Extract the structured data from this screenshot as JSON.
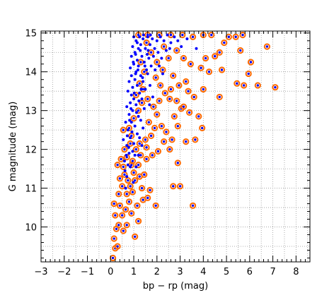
{
  "chart_data": {
    "type": "scatter",
    "title": "",
    "xlabel": "bp − rp (mag)",
    "ylabel": "G magnitude (mag)",
    "xlim": [
      -3,
      8.6
    ],
    "ylim": [
      9.1,
      15.05
    ],
    "x_ticks": [
      -3,
      -2,
      -1,
      0,
      1,
      2,
      3,
      4,
      5,
      6,
      7,
      8
    ],
    "x_tick_labels": [
      "−3",
      "−2",
      "−1",
      "0",
      "1",
      "2",
      "3",
      "4",
      "5",
      "6",
      "7",
      "8"
    ],
    "y_ticks": [
      10,
      11,
      12,
      13,
      14,
      15
    ],
    "y_tick_labels": [
      "10",
      "11",
      "12",
      "13",
      "14",
      "15"
    ],
    "grid": true,
    "grid_style": "dotted",
    "legend": "none",
    "series": [
      {
        "marker": "ringed-dot",
        "color": "#0000ff",
        "ring_color": "#ff6a00",
        "points": [
          [
            0.1,
            9.2
          ],
          [
            0.2,
            9.45
          ],
          [
            0.15,
            9.7
          ],
          [
            0.3,
            9.5
          ],
          [
            0.25,
            9.95
          ],
          [
            0.35,
            10.05
          ],
          [
            0.2,
            10.3
          ],
          [
            0.55,
            9.9
          ],
          [
            0.7,
            10.05
          ],
          [
            1.05,
            9.75
          ],
          [
            0.15,
            10.6
          ],
          [
            0.4,
            10.55
          ],
          [
            0.65,
            10.45
          ],
          [
            0.9,
            10.35
          ],
          [
            0.8,
            10.65
          ],
          [
            1.15,
            10.55
          ],
          [
            0.95,
            10.9
          ],
          [
            0.35,
            10.85
          ],
          [
            0.5,
            11.05
          ],
          [
            0.75,
            11.2
          ],
          [
            0.6,
            11.35
          ],
          [
            0.85,
            11.05
          ],
          [
            1.35,
            11.0
          ],
          [
            1.7,
            10.95
          ],
          [
            1.45,
            11.35
          ],
          [
            1.2,
            11.6
          ],
          [
            0.55,
            11.55
          ],
          [
            0.45,
            11.75
          ],
          [
            0.7,
            11.8
          ],
          [
            0.9,
            11.6
          ],
          [
            1.0,
            11.4
          ],
          [
            1.3,
            11.85
          ],
          [
            1.55,
            11.75
          ],
          [
            1.8,
            11.85
          ],
          [
            2.05,
            11.95
          ],
          [
            1.1,
            12.0
          ],
          [
            0.85,
            12.15
          ],
          [
            1.25,
            12.15
          ],
          [
            1.5,
            12.25
          ],
          [
            1.75,
            12.35
          ],
          [
            0.6,
            12.0
          ],
          [
            0.9,
            12.35
          ],
          [
            2.55,
            12.0
          ],
          [
            2.4,
            12.45
          ],
          [
            2.2,
            12.6
          ],
          [
            2.9,
            12.6
          ],
          [
            2.75,
            12.85
          ],
          [
            2.0,
            12.9
          ],
          [
            1.85,
            13.1
          ],
          [
            2.1,
            13.25
          ],
          [
            1.6,
            13.3
          ],
          [
            1.4,
            13.55
          ],
          [
            2.35,
            13.45
          ],
          [
            2.55,
            13.3
          ],
          [
            3.05,
            13.05
          ],
          [
            3.4,
            12.95
          ],
          [
            3.8,
            12.85
          ],
          [
            3.35,
            13.5
          ],
          [
            3.6,
            13.35
          ],
          [
            3.25,
            13.75
          ],
          [
            2.95,
            13.65
          ],
          [
            2.7,
            13.9
          ],
          [
            2.25,
            14.05
          ],
          [
            2.5,
            14.35
          ],
          [
            2.0,
            14.25
          ],
          [
            1.75,
            14.5
          ],
          [
            1.55,
            14.75
          ],
          [
            2.3,
            14.65
          ],
          [
            2.85,
            14.55
          ],
          [
            3.15,
            14.35
          ],
          [
            3.45,
            14.2
          ],
          [
            3.9,
            14.1
          ],
          [
            4.25,
            14.0
          ],
          [
            4.7,
            13.35
          ],
          [
            4.1,
            14.35
          ],
          [
            4.5,
            14.4
          ],
          [
            4.7,
            14.5
          ],
          [
            4.9,
            14.75
          ],
          [
            5.1,
            14.9
          ],
          [
            5.4,
            14.9
          ],
          [
            5.7,
            14.95
          ],
          [
            5.6,
            14.55
          ],
          [
            6.05,
            14.25
          ],
          [
            5.95,
            13.95
          ],
          [
            5.45,
            13.7
          ],
          [
            5.75,
            13.65
          ],
          [
            6.35,
            13.65
          ],
          [
            6.75,
            14.65
          ],
          [
            7.1,
            13.6
          ],
          [
            1.2,
            14.95
          ],
          [
            1.6,
            14.95
          ],
          [
            2.1,
            14.95
          ],
          [
            2.6,
            14.95
          ],
          [
            3.1,
            14.95
          ],
          [
            3.55,
            14.9
          ],
          [
            4.0,
            14.95
          ],
          [
            4.35,
            14.95
          ],
          [
            3.55,
            10.55
          ],
          [
            2.7,
            11.05
          ],
          [
            2.9,
            11.65
          ],
          [
            3.0,
            11.05
          ],
          [
            1.95,
            10.55
          ],
          [
            1.6,
            10.75
          ],
          [
            1.2,
            10.15
          ],
          [
            0.4,
            11.25
          ],
          [
            0.3,
            11.6
          ],
          [
            0.55,
            12.5
          ],
          [
            0.8,
            12.55
          ],
          [
            1.0,
            12.8
          ],
          [
            1.2,
            13.0
          ],
          [
            1.35,
            13.2
          ],
          [
            1.1,
            13.4
          ],
          [
            1.25,
            13.7
          ],
          [
            1.45,
            14.0
          ],
          [
            1.3,
            14.25
          ],
          [
            1.65,
            12.7
          ],
          [
            1.9,
            12.55
          ],
          [
            2.3,
            12.2
          ],
          [
            1.55,
            12.05
          ],
          [
            2.65,
            12.25
          ],
          [
            3.25,
            12.2
          ],
          [
            0.95,
            11.7
          ],
          [
            1.05,
            11.2
          ],
          [
            1.25,
            11.3
          ],
          [
            0.7,
            10.85
          ],
          [
            0.5,
            10.3
          ],
          [
            1.4,
            10.7
          ],
          [
            2.15,
            13.65
          ],
          [
            1.95,
            13.85
          ],
          [
            2.6,
            13.55
          ],
          [
            2.85,
            13.25
          ],
          [
            3.15,
            13.1
          ],
          [
            4.0,
            13.55
          ],
          [
            3.95,
            12.55
          ],
          [
            3.65,
            12.25
          ],
          [
            4.8,
            14.05
          ]
        ]
      },
      {
        "marker": "dot",
        "color": "#0000ff",
        "points": [
          [
            0.7,
            11.3
          ],
          [
            0.75,
            11.6
          ],
          [
            0.8,
            11.9
          ],
          [
            0.7,
            12.1
          ],
          [
            0.85,
            12.3
          ],
          [
            0.75,
            12.5
          ],
          [
            0.9,
            12.7
          ],
          [
            0.8,
            12.9
          ],
          [
            0.95,
            13.0
          ],
          [
            0.85,
            13.2
          ],
          [
            0.9,
            13.4
          ],
          [
            1.0,
            13.3
          ],
          [
            0.95,
            13.6
          ],
          [
            1.05,
            13.8
          ],
          [
            0.9,
            13.9
          ],
          [
            1.1,
            14.0
          ],
          [
            1.0,
            14.2
          ],
          [
            1.15,
            14.3
          ],
          [
            1.05,
            14.5
          ],
          [
            1.2,
            14.6
          ],
          [
            1.1,
            14.8
          ],
          [
            1.25,
            14.9
          ],
          [
            1.3,
            14.7
          ],
          [
            1.4,
            14.85
          ],
          [
            1.5,
            14.6
          ],
          [
            1.35,
            14.4
          ],
          [
            1.2,
            14.15
          ],
          [
            1.3,
            13.9
          ],
          [
            1.15,
            13.65
          ],
          [
            1.25,
            13.45
          ],
          [
            1.1,
            13.15
          ],
          [
            1.2,
            12.85
          ],
          [
            1.05,
            12.6
          ],
          [
            1.15,
            12.4
          ],
          [
            1.0,
            12.15
          ],
          [
            0.95,
            11.95
          ],
          [
            1.05,
            11.85
          ],
          [
            0.85,
            11.55
          ],
          [
            0.65,
            11.0
          ],
          [
            0.6,
            11.7
          ],
          [
            0.55,
            12.25
          ],
          [
            0.65,
            12.7
          ],
          [
            0.7,
            13.1
          ],
          [
            0.75,
            13.5
          ],
          [
            0.8,
            13.75
          ],
          [
            0.85,
            14.1
          ],
          [
            0.9,
            14.4
          ],
          [
            0.95,
            14.65
          ],
          [
            1.0,
            14.9
          ],
          [
            1.6,
            14.9
          ],
          [
            1.7,
            14.7
          ],
          [
            1.8,
            14.85
          ],
          [
            1.9,
            14.6
          ],
          [
            2.0,
            14.8
          ],
          [
            2.15,
            14.9
          ],
          [
            2.3,
            14.8
          ],
          [
            2.45,
            14.95
          ],
          [
            2.6,
            14.75
          ],
          [
            2.75,
            14.9
          ],
          [
            1.45,
            14.25
          ],
          [
            1.55,
            14.05
          ],
          [
            1.65,
            14.35
          ],
          [
            1.75,
            14.15
          ],
          [
            1.85,
            14.4
          ],
          [
            2.05,
            14.5
          ],
          [
            2.2,
            14.35
          ],
          [
            1.4,
            13.75
          ],
          [
            1.5,
            13.55
          ],
          [
            1.6,
            13.95
          ],
          [
            1.7,
            13.65
          ],
          [
            1.35,
            13.3
          ],
          [
            1.45,
            13.05
          ],
          [
            1.3,
            12.75
          ],
          [
            1.4,
            12.55
          ],
          [
            1.25,
            12.3
          ],
          [
            1.35,
            12.1
          ],
          [
            1.2,
            11.85
          ],
          [
            1.1,
            11.55
          ],
          [
            0.98,
            11.15
          ],
          [
            1.15,
            14.75
          ],
          [
            1.28,
            14.55
          ],
          [
            1.42,
            14.95
          ],
          [
            1.58,
            14.45
          ],
          [
            1.08,
            13.95
          ],
          [
            1.02,
            13.45
          ],
          [
            0.88,
            13.05
          ],
          [
            0.82,
            12.75
          ],
          [
            0.72,
            12.35
          ],
          [
            0.78,
            12.05
          ],
          [
            0.68,
            11.85
          ],
          [
            0.62,
            11.45
          ],
          [
            0.92,
            12.45
          ],
          [
            1.12,
            12.95
          ],
          [
            1.22,
            13.25
          ],
          [
            1.32,
            13.55
          ],
          [
            1.38,
            13.85
          ],
          [
            1.48,
            14.15
          ],
          [
            1.62,
            14.55
          ],
          [
            1.72,
            14.95
          ],
          [
            2.4,
            14.55
          ],
          [
            2.55,
            14.6
          ],
          [
            2.9,
            14.8
          ],
          [
            3.05,
            14.65
          ],
          [
            3.3,
            14.85
          ],
          [
            3.7,
            14.6
          ],
          [
            1.82,
            13.35
          ],
          [
            1.68,
            13.15
          ],
          [
            1.92,
            14.05
          ],
          [
            2.1,
            14.15
          ],
          [
            2.25,
            13.95
          ],
          [
            0.98,
            14.25
          ],
          [
            1.08,
            14.45
          ],
          [
            1.18,
            14.05
          ]
        ]
      }
    ]
  }
}
